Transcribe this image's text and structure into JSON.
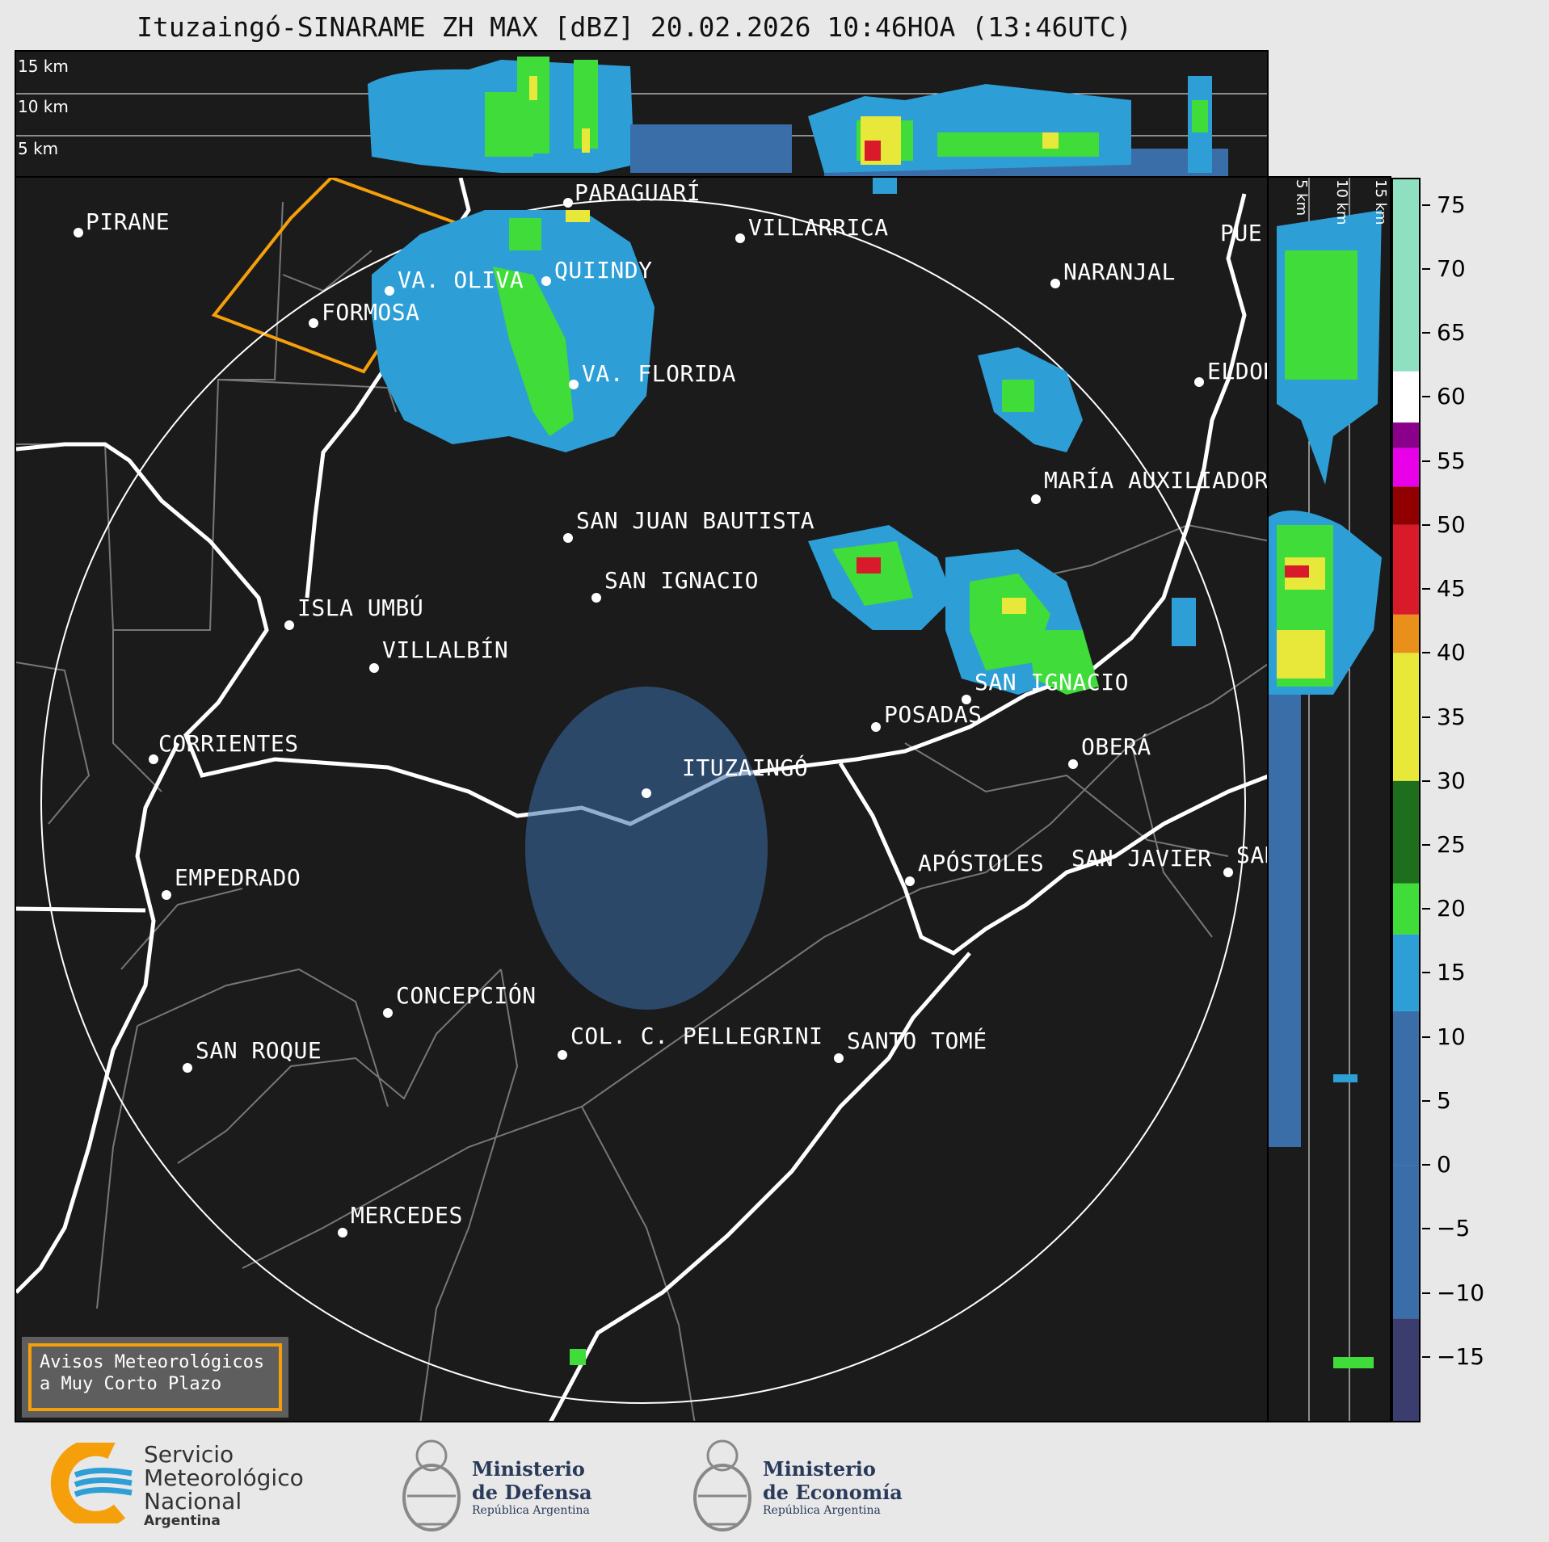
{
  "title": "Ituzaingó-SINARAME ZH MAX [dBZ] 20.02.2026 10:46HOA (13:46UTC)",
  "top_panel": {
    "height_labels": [
      "15 km",
      "10 km",
      "5 km"
    ]
  },
  "side_panel": {
    "height_labels": [
      "5 km",
      "10 km",
      "15 km"
    ]
  },
  "cities": [
    {
      "name": "PIRANE"
    },
    {
      "name": "PARAGUARÍ"
    },
    {
      "name": "VILLARRICA"
    },
    {
      "name": "QUIINDY"
    },
    {
      "name": "VA. OLIVA"
    },
    {
      "name": "NARANJAL"
    },
    {
      "name": "FORMOSA"
    },
    {
      "name": "VA. FLORIDA"
    },
    {
      "name": "ELDOR"
    },
    {
      "name": "MARÍA AUXILIADOR"
    },
    {
      "name": "SAN JUAN BAUTISTA"
    },
    {
      "name": "SAN IGNACIO"
    },
    {
      "name": "ISLA UMBÚ"
    },
    {
      "name": "VILLALBÍN"
    },
    {
      "name": "SAN IGNACIO"
    },
    {
      "name": "POSADAS"
    },
    {
      "name": "CORRIENTES"
    },
    {
      "name": "ITUZAINGÓ"
    },
    {
      "name": "OBERÁ"
    },
    {
      "name": "APÓSTOLES"
    },
    {
      "name": "SAN JAVIER"
    },
    {
      "name": "SAN"
    },
    {
      "name": "EMPEDRADO"
    },
    {
      "name": "CONCEPCIÓN"
    },
    {
      "name": "COL. C. PELLEGRINI"
    },
    {
      "name": "SANTO TOMÉ"
    },
    {
      "name": "SAN ROQUE"
    },
    {
      "name": "MERCEDES"
    },
    {
      "name": "PUE"
    }
  ],
  "colorbar": {
    "unit": "dBZ",
    "tick_labels": [
      "75",
      "70",
      "65",
      "60",
      "55",
      "50",
      "45",
      "40",
      "35",
      "30",
      "25",
      "20",
      "15",
      "10",
      "5",
      "0",
      "−5",
      "−10",
      "−15"
    ],
    "range": [
      -20,
      77
    ],
    "colors": {
      "low": "#3a3d6e",
      "mid_low": "#3a6ea8",
      "blue": "#2e9fd6",
      "green": "#3fdc3a",
      "dark_green": "#1d6e1d",
      "yellow": "#e8e83a",
      "orange": "#e8901a",
      "red": "#d81a2a",
      "dark_red": "#900000",
      "magenta": "#e800e8",
      "purple": "#8a008a",
      "white": "#ffffff",
      "mint": "#8ee0c0"
    }
  },
  "warning_box": {
    "line1": "Avisos Meteorológicos",
    "line2": "a Muy Corto Plazo"
  },
  "logos": {
    "smn": {
      "line1": "Servicio",
      "line2": "Meteorológico",
      "line3": "Nacional",
      "line4": "Argentina"
    },
    "defensa": {
      "line1": "Ministerio",
      "line2": "de Defensa",
      "line3": "República Argentina"
    },
    "economia": {
      "line1": "Ministerio",
      "line2": "de Economía",
      "line3": "República Argentina"
    }
  }
}
